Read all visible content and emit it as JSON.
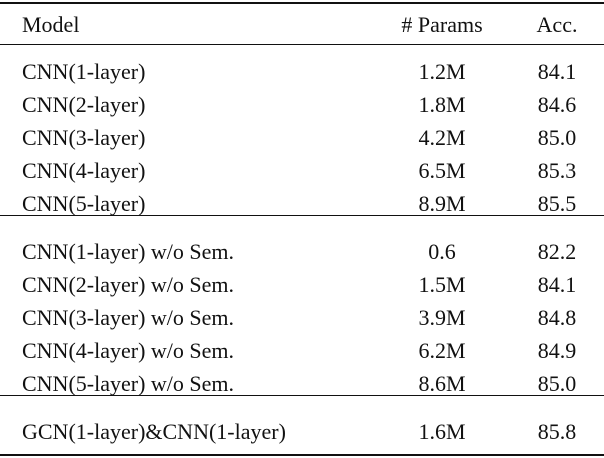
{
  "table": {
    "header": [
      "Model",
      "# Params",
      "Acc."
    ],
    "groups": [
      [
        [
          "CNN(1-layer)",
          "1.2M",
          "84.1"
        ],
        [
          "CNN(2-layer)",
          "1.8M",
          "84.6"
        ],
        [
          "CNN(3-layer)",
          "4.2M",
          "85.0"
        ],
        [
          "CNN(4-layer)",
          "6.5M",
          "85.3"
        ],
        [
          "CNN(5-layer)",
          "8.9M",
          "85.5"
        ]
      ],
      [
        [
          "CNN(1-layer) w/o Sem.",
          "0.6",
          "82.2"
        ],
        [
          "CNN(2-layer) w/o Sem.",
          "1.5M",
          "84.1"
        ],
        [
          "CNN(3-layer) w/o Sem.",
          "3.9M",
          "84.8"
        ],
        [
          "CNN(4-layer) w/o Sem.",
          "6.2M",
          "84.9"
        ],
        [
          "CNN(5-layer) w/o Sem.",
          "8.6M",
          "85.0"
        ]
      ],
      [
        [
          "GCN(1-layer)&CNN(1-layer)",
          "1.6M",
          "85.8"
        ]
      ]
    ]
  }
}
